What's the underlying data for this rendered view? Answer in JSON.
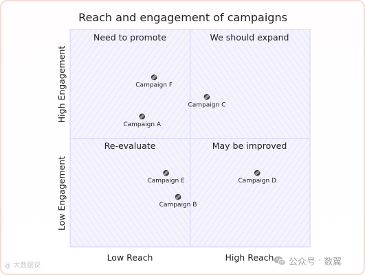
{
  "chart_data": {
    "type": "scatter",
    "title": "Reach and engagement of campaigns",
    "x_axis": {
      "low_label": "Low Reach",
      "high_label": "High Reach",
      "range": [
        0,
        1
      ]
    },
    "y_axis": {
      "low_label": "Low Engagement",
      "high_label": "High Engagement",
      "range": [
        0,
        1
      ]
    },
    "quadrants": {
      "top_left": "Need to promote",
      "top_right": "We should expand",
      "bottom_left": "Re-evaluate",
      "bottom_right": "May be improved"
    },
    "points": [
      {
        "label": "Campaign A",
        "x": 0.3,
        "y": 0.6
      },
      {
        "label": "Campaign B",
        "x": 0.45,
        "y": 0.23
      },
      {
        "label": "Campaign C",
        "x": 0.57,
        "y": 0.69
      },
      {
        "label": "Campaign D",
        "x": 0.78,
        "y": 0.34
      },
      {
        "label": "Campaign E",
        "x": 0.4,
        "y": 0.34
      },
      {
        "label": "Campaign F",
        "x": 0.35,
        "y": 0.78
      }
    ],
    "colors": {
      "quadrant_fill": "#f3f2fd",
      "hatch": "#cdc8f2",
      "border": "#d6d3f4",
      "point": "#333333"
    }
  },
  "watermark": {
    "left": "@ 大数据说",
    "brand_icon": "wechat-icon",
    "brand_text": "公众号",
    "separator": "·",
    "brand_name": "数翼"
  }
}
